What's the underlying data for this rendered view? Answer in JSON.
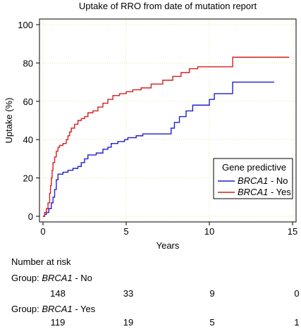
{
  "chart_data": {
    "type": "line",
    "step": true,
    "title": "Uptake of RRO from date of mutation report",
    "xlabel": "Years",
    "ylabel": "Uptake (%)",
    "xlim": [
      0,
      15
    ],
    "ylim": [
      0,
      100
    ],
    "xticks": [
      0,
      5,
      10,
      15
    ],
    "yticks": [
      0,
      20,
      40,
      60,
      80,
      100
    ],
    "grid": true,
    "legend": {
      "title": "Gene predictive",
      "placement": "right",
      "entries": [
        {
          "gene": "BRCA1",
          "suffix": " - No",
          "color": "#1f1fcc"
        },
        {
          "gene": "BRCA1",
          "suffix": " - Yes",
          "color": "#d41f1f"
        }
      ]
    },
    "series": [
      {
        "name": "BRCA1 - No",
        "color": "#1f1fcc",
        "points": [
          [
            0,
            0
          ],
          [
            0.1,
            1
          ],
          [
            0.2,
            2
          ],
          [
            0.35,
            4
          ],
          [
            0.5,
            7
          ],
          [
            0.6,
            10
          ],
          [
            0.7,
            14
          ],
          [
            0.8,
            19
          ],
          [
            0.9,
            22
          ],
          [
            1.2,
            23
          ],
          [
            1.5,
            24
          ],
          [
            1.8,
            25
          ],
          [
            2.1,
            26
          ],
          [
            2.3,
            28
          ],
          [
            2.5,
            30
          ],
          [
            2.7,
            32
          ],
          [
            3.2,
            33
          ],
          [
            3.6,
            35
          ],
          [
            3.9,
            36
          ],
          [
            4.1,
            38
          ],
          [
            4.5,
            39
          ],
          [
            4.9,
            40
          ],
          [
            5.1,
            41
          ],
          [
            5.6,
            42
          ],
          [
            6.0,
            43
          ],
          [
            7.7,
            46
          ],
          [
            7.9,
            49
          ],
          [
            8.2,
            52
          ],
          [
            8.6,
            55
          ],
          [
            9.0,
            58
          ],
          [
            10.0,
            61
          ],
          [
            10.3,
            64
          ],
          [
            11.4,
            70
          ],
          [
            13.9,
            70
          ]
        ]
      },
      {
        "name": "BRCA1 - Yes",
        "color": "#d41f1f",
        "points": [
          [
            0,
            0
          ],
          [
            0.1,
            2
          ],
          [
            0.2,
            4
          ],
          [
            0.3,
            7
          ],
          [
            0.4,
            12
          ],
          [
            0.45,
            16
          ],
          [
            0.5,
            20
          ],
          [
            0.55,
            24
          ],
          [
            0.6,
            28
          ],
          [
            0.7,
            31
          ],
          [
            0.8,
            34
          ],
          [
            0.9,
            36
          ],
          [
            1.0,
            37
          ],
          [
            1.2,
            38
          ],
          [
            1.4,
            40
          ],
          [
            1.5,
            42
          ],
          [
            1.6,
            44
          ],
          [
            1.7,
            46
          ],
          [
            1.9,
            48
          ],
          [
            2.1,
            50
          ],
          [
            2.3,
            51
          ],
          [
            2.5,
            52
          ],
          [
            2.7,
            54
          ],
          [
            3.0,
            55
          ],
          [
            3.3,
            57
          ],
          [
            3.6,
            59
          ],
          [
            3.9,
            61
          ],
          [
            4.2,
            63
          ],
          [
            4.6,
            64
          ],
          [
            5.0,
            65
          ],
          [
            5.4,
            66
          ],
          [
            5.9,
            67
          ],
          [
            6.5,
            69
          ],
          [
            7.2,
            71
          ],
          [
            7.8,
            73
          ],
          [
            8.3,
            75
          ],
          [
            8.8,
            77
          ],
          [
            9.3,
            78
          ],
          [
            11.4,
            83
          ],
          [
            14.8,
            83
          ]
        ]
      }
    ]
  },
  "risk_table": {
    "title": "Number at risk",
    "groups": [
      {
        "prefix": "Group: ",
        "gene": "BRCA1",
        "suffix": " - No",
        "counts": [
          "148",
          "33",
          "9",
          "0"
        ]
      },
      {
        "prefix": "Group: ",
        "gene": "BRCA1",
        "suffix": " - Yes",
        "counts": [
          "119",
          "19",
          "5",
          "1"
        ]
      }
    ]
  }
}
